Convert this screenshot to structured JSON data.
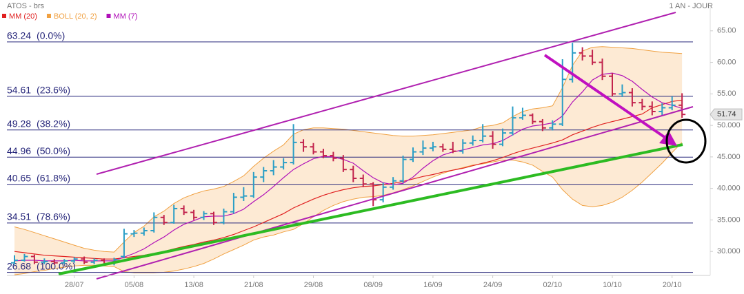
{
  "chart_data": {
    "type": "ohlc",
    "title": "ATOS - brs",
    "period": "1 AN - JOUR",
    "categories": [
      null,
      null,
      null,
      null,
      null,
      null,
      "28/07",
      null,
      null,
      null,
      null,
      null,
      "05/08",
      null,
      null,
      null,
      null,
      null,
      "13/08",
      null,
      null,
      null,
      null,
      null,
      "21/08",
      null,
      null,
      null,
      null,
      null,
      "29/08",
      null,
      null,
      null,
      null,
      null,
      "08/09",
      null,
      null,
      null,
      null,
      null,
      "16/09",
      null,
      null,
      null,
      null,
      null,
      "24/09",
      null,
      null,
      null,
      null,
      null,
      "02/10",
      null,
      null,
      null,
      null,
      null,
      "10/10",
      null,
      null,
      null,
      null,
      null,
      "20/10",
      null
    ],
    "ohlc": {
      "up_color": "#2a9ec6",
      "down_color": "#c2234c",
      "open": [
        28.2,
        28.6,
        29.2,
        28.3,
        28.4,
        28.2,
        28.5,
        28.8,
        28.3,
        28.6,
        28.1,
        29.2,
        32.8,
        32.9,
        33.3,
        35.4,
        34.6,
        36.8,
        36.2,
        35.4,
        36.0,
        34.6,
        36.3,
        38.6,
        38.8,
        41.8,
        42.8,
        43.4,
        44.1,
        47.3,
        46.6,
        45.8,
        45.2,
        44.8,
        43.0,
        41.6,
        40.7,
        38.2,
        40.2,
        41.2,
        44.6,
        45.8,
        46.4,
        46.6,
        46.2,
        45.9,
        47.2,
        47.6,
        48.3,
        47.0,
        48.8,
        51.2,
        51.6,
        50.6,
        49.6,
        50.2,
        57.3,
        61.5,
        61.0,
        60.0,
        57.8,
        55.0,
        55.2,
        53.6,
        53.0,
        52.2,
        52.8,
        53.2
      ],
      "high": [
        29.4,
        29.6,
        29.5,
        28.9,
        28.8,
        28.8,
        29.1,
        29.2,
        28.9,
        28.9,
        29.0,
        33.6,
        33.4,
        33.8,
        36.2,
        35.8,
        37.4,
        37.3,
        36.6,
        36.4,
        36.3,
        36.8,
        39.3,
        40.2,
        42.6,
        43.4,
        44.5,
        44.8,
        50.2,
        47.8,
        47.2,
        46.3,
        45.8,
        45.3,
        43.6,
        42.2,
        41.0,
        40.9,
        41.8,
        45.2,
        46.5,
        47.6,
        47.4,
        47.1,
        47.4,
        47.8,
        48.4,
        50.2,
        49.1,
        49.5,
        53.0,
        52.8,
        51.9,
        51.0,
        50.8,
        60.5,
        63.1,
        62.4,
        62.0,
        60.6,
        58.3,
        56.5,
        55.9,
        54.2,
        53.8,
        53.5,
        54.6,
        55.1
      ],
      "low": [
        27.9,
        28.4,
        28.0,
        28.0,
        27.9,
        28.0,
        28.2,
        28.0,
        28.0,
        27.8,
        27.8,
        28.9,
        32.3,
        32.5,
        33.0,
        34.2,
        34.4,
        35.8,
        35.0,
        35.0,
        34.2,
        34.3,
        36.0,
        38.0,
        38.5,
        41.0,
        42.1,
        43.0,
        43.8,
        45.8,
        45.4,
        44.8,
        44.3,
        42.6,
        41.0,
        40.2,
        37.2,
        37.8,
        39.8,
        40.9,
        44.2,
        45.3,
        45.9,
        45.8,
        45.6,
        45.5,
        46.8,
        47.3,
        46.3,
        46.7,
        48.4,
        50.9,
        50.2,
        49.1,
        49.2,
        49.9,
        56.8,
        60.3,
        59.6,
        57.2,
        54.6,
        54.5,
        53.0,
        52.4,
        51.6,
        51.6,
        52.4,
        51.2
      ],
      "close": [
        28.6,
        29.2,
        28.3,
        28.4,
        28.2,
        28.5,
        28.8,
        28.3,
        28.6,
        28.1,
        28.7,
        32.8,
        32.9,
        33.3,
        35.4,
        34.6,
        36.8,
        36.2,
        35.4,
        36.0,
        34.6,
        36.3,
        38.6,
        38.8,
        41.8,
        42.8,
        43.4,
        44.1,
        47.3,
        46.6,
        45.8,
        45.2,
        44.8,
        43.0,
        41.6,
        40.7,
        38.2,
        40.2,
        41.2,
        44.6,
        45.8,
        46.4,
        46.6,
        46.2,
        45.9,
        47.2,
        47.6,
        48.3,
        47.0,
        48.8,
        51.2,
        51.6,
        50.6,
        49.6,
        50.2,
        57.3,
        61.5,
        61.0,
        60.0,
        57.8,
        55.0,
        55.2,
        53.6,
        53.0,
        52.2,
        52.8,
        53.2,
        51.74
      ]
    },
    "series": [
      {
        "name": "MM (20)",
        "color": "#e02020",
        "values": [
          30.0,
          29.8,
          29.6,
          29.4,
          29.3,
          29.2,
          29.1,
          29.0,
          28.9,
          28.8,
          28.8,
          29.0,
          29.2,
          29.4,
          29.7,
          30.0,
          30.4,
          30.8,
          31.1,
          31.5,
          31.8,
          32.2,
          32.7,
          33.3,
          33.9,
          34.6,
          35.3,
          36.0,
          36.9,
          37.6,
          38.3,
          38.9,
          39.4,
          39.8,
          40.1,
          40.3,
          40.4,
          40.6,
          40.8,
          41.1,
          41.5,
          41.9,
          42.2,
          42.6,
          42.9,
          43.2,
          43.6,
          44.0,
          44.4,
          44.9,
          45.5,
          46.0,
          46.4,
          46.8,
          47.2,
          47.7,
          48.5,
          49.1,
          49.7,
          50.2,
          50.6,
          51.0,
          51.4,
          51.8,
          52.8,
          53.3,
          53.8,
          54.0
        ]
      },
      {
        "name": "BOLL (20, 2)",
        "color": "#f0a040",
        "fill": "#fde6cc",
        "upper": [
          33.9,
          33.5,
          33.0,
          32.5,
          32.0,
          31.5,
          31.0,
          30.5,
          30.2,
          30.0,
          29.9,
          31.5,
          33.0,
          34.0,
          35.5,
          36.4,
          37.6,
          38.5,
          39.1,
          39.6,
          39.9,
          40.3,
          41.1,
          42.0,
          43.5,
          44.8,
          45.9,
          46.9,
          48.6,
          49.3,
          49.6,
          49.6,
          49.5,
          49.4,
          49.2,
          49.0,
          48.8,
          48.6,
          48.4,
          48.3,
          48.3,
          48.4,
          48.5,
          48.7,
          48.9,
          49.1,
          49.3,
          49.8,
          50.0,
          50.4,
          51.4,
          52.2,
          52.6,
          52.8,
          53.1,
          56.0,
          59.5,
          61.8,
          62.4,
          62.5,
          62.4,
          62.3,
          62.2,
          62.0,
          61.8,
          61.6,
          61.5,
          61.4
        ],
        "lower": [
          26.3,
          26.5,
          26.8,
          27.0,
          27.3,
          27.5,
          27.7,
          27.8,
          27.8,
          27.7,
          27.6,
          26.8,
          26.6,
          26.6,
          26.6,
          26.7,
          26.9,
          27.2,
          27.6,
          28.1,
          28.8,
          29.6,
          30.3,
          31.0,
          31.8,
          32.3,
          32.6,
          33.1,
          33.5,
          34.4,
          35.5,
          36.5,
          37.3,
          37.9,
          38.3,
          38.6,
          38.7,
          38.9,
          39.3,
          39.8,
          40.4,
          41.1,
          41.8,
          42.4,
          42.9,
          43.3,
          43.7,
          43.9,
          44.2,
          44.5,
          44.5,
          44.2,
          43.7,
          42.7,
          41.8,
          39.8,
          38.3,
          37.3,
          37.1,
          37.3,
          37.8,
          38.6,
          39.7,
          41.0,
          42.5,
          44.0,
          45.7,
          47.3
        ]
      },
      {
        "name": "MM (7)",
        "color": "#b010b8",
        "values": [
          28.5,
          28.6,
          28.6,
          28.5,
          28.5,
          28.5,
          28.6,
          28.5,
          28.5,
          28.5,
          28.5,
          29.1,
          29.7,
          30.4,
          31.4,
          32.3,
          33.4,
          34.3,
          34.9,
          35.5,
          35.6,
          35.6,
          36.0,
          36.7,
          37.9,
          39.0,
          40.3,
          41.7,
          43.0,
          43.9,
          44.7,
          45.1,
          45.0,
          44.6,
          44.0,
          42.8,
          41.7,
          40.9,
          40.6,
          40.8,
          41.8,
          43.2,
          44.4,
          45.3,
          45.8,
          46.1,
          46.5,
          46.9,
          47.1,
          47.6,
          48.5,
          49.4,
          49.9,
          50.1,
          50.4,
          51.5,
          53.7,
          55.3,
          57.2,
          58.1,
          58.3,
          57.9,
          57.0,
          55.7,
          54.5,
          53.6,
          53.2,
          52.7
        ]
      }
    ],
    "fibonacci": [
      {
        "price": 63.24,
        "ratio": "(0.0%)"
      },
      {
        "price": 54.61,
        "ratio": "(23.6%)"
      },
      {
        "price": 49.28,
        "ratio": "(38.2%)"
      },
      {
        "price": 44.96,
        "ratio": "(50.0%)"
      },
      {
        "price": 40.65,
        "ratio": "(61.8%)"
      },
      {
        "price": 34.51,
        "ratio": "(78.6%)"
      },
      {
        "price": 26.68,
        "ratio": "(100.0%)"
      }
    ],
    "fib_color": "#26267a",
    "last_price": 51.74,
    "ylim": [
      26.2,
      68.8
    ],
    "yticks": [
      {
        "value": 65,
        "label": "65.00"
      },
      {
        "value": 60,
        "label": "60.00"
      },
      {
        "value": 55,
        "label": "55.00"
      },
      {
        "value": 50,
        "label": "50.000"
      },
      {
        "value": 45,
        "label": "45.000"
      },
      {
        "value": 40,
        "label": "40.000"
      },
      {
        "value": 35,
        "label": "35.000"
      },
      {
        "value": 30,
        "label": "30.000"
      }
    ]
  }
}
